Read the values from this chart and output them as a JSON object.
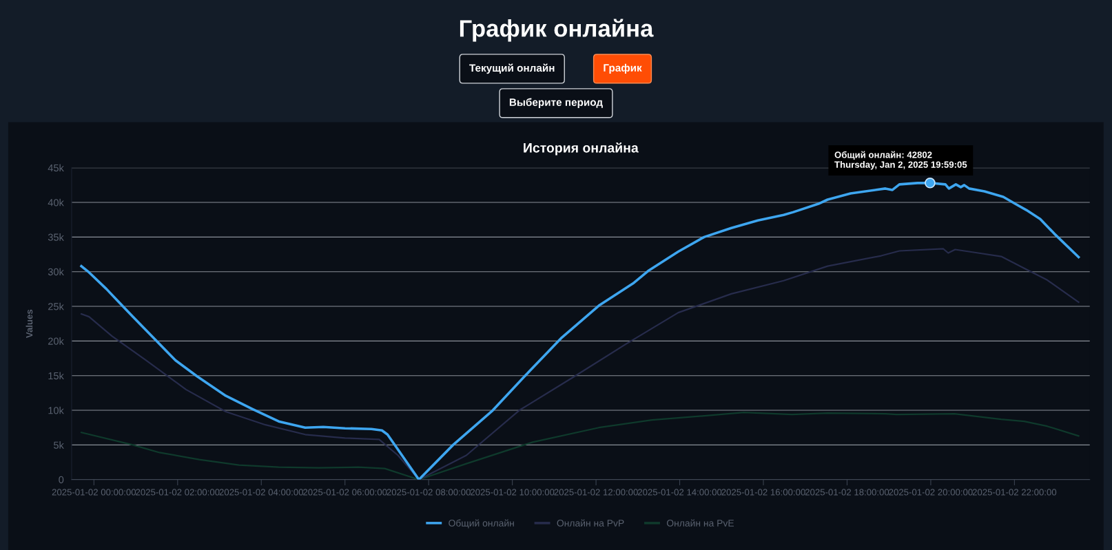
{
  "chart_data": {
    "type": "line",
    "title": "График онлайна",
    "subtitle": "История онлайна",
    "ylabel": "Values",
    "annotations": [
      "Текущий онлайн",
      "График",
      "Выберите период",
      {
        "text": "Общий онлайн: 42802\nThursday, Jan 2, 2025 19:59:05",
        "x": "2025-01-02T19:59",
        "y": 42802
      }
    ],
    "xlim": [
      "2025-01-01T23:28",
      "2025-01-02T23:48"
    ],
    "xticks": [
      {
        "value": "2025-01-02T00:00",
        "label": "2025-01-02 00:00:00"
      },
      {
        "value": "2025-01-02T02:00",
        "label": "2025-01-02 02:00:00"
      },
      {
        "value": "2025-01-02T04:00",
        "label": "2025-01-02 04:00:00"
      },
      {
        "value": "2025-01-02T06:00",
        "label": "2025-01-02 06:00:00"
      },
      {
        "value": "2025-01-02T08:00",
        "label": "2025-01-02 08:00:00"
      },
      {
        "value": "2025-01-02T10:00",
        "label": "2025-01-02 10:00:00"
      },
      {
        "value": "2025-01-02T12:00",
        "label": "2025-01-02 12:00:00"
      },
      {
        "value": "2025-01-02T14:00",
        "label": "2025-01-02 14:00:00"
      },
      {
        "value": "2025-01-02T16:00",
        "label": "2025-01-02 16:00:00"
      },
      {
        "value": "2025-01-02T18:00",
        "label": "2025-01-02 18:00:00"
      },
      {
        "value": "2025-01-02T20:00",
        "label": "2025-01-02 20:00:00"
      },
      {
        "value": "2025-01-02T22:00",
        "label": "2025-01-02 22:00:00"
      }
    ],
    "ylim": [
      0,
      45000
    ],
    "yticks": [
      0,
      {
        "value": 5000,
        "label": "5k"
      },
      {
        "value": 10000,
        "label": "10k"
      },
      {
        "value": 15000,
        "label": "15k"
      },
      {
        "value": 20000,
        "label": "20k"
      },
      {
        "value": 25000,
        "label": "25k"
      },
      {
        "value": 30000,
        "label": "30k"
      },
      {
        "value": 35000,
        "label": "35k"
      },
      {
        "value": 40000,
        "label": "40k"
      },
      {
        "value": 45000,
        "label": "45k"
      }
    ],
    "grid": "y",
    "legend": "bottom",
    "line_style": "solid",
    "series": [
      {
        "name": "Общий онлайн",
        "color": "#3ea6f0",
        "x": [
          "2025-01-01T23:42",
          "2025-01-01T23:53",
          "2025-01-02T00:18",
          "2025-01-02T00:34",
          "2025-01-02T00:56",
          "2025-01-02T01:23",
          "2025-01-02T01:57",
          "2025-01-02T02:28",
          "2025-01-02T03:09",
          "2025-01-02T03:47",
          "2025-01-02T04:25",
          "2025-01-02T05:03",
          "2025-01-02T05:29",
          "2025-01-02T06:00",
          "2025-01-02T06:38",
          "2025-01-02T06:53",
          "2025-01-02T07:01",
          "2025-01-02T07:46",
          "2025-01-02T08:35",
          "2025-01-02T09:32",
          "2025-01-02T10:25",
          "2025-01-02T11:11",
          "2025-01-02T12:04",
          "2025-01-02T12:53",
          "2025-01-02T13:16",
          "2025-01-02T13:58",
          "2025-01-02T14:35",
          "2025-01-02T15:14",
          "2025-01-02T15:52",
          "2025-01-02T16:29",
          "2025-01-02T16:43",
          "2025-01-02T17:19",
          "2025-01-02T17:32",
          "2025-01-02T18:05",
          "2025-01-02T18:55",
          "2025-01-02T19:05",
          "2025-01-02T19:15",
          "2025-01-02T19:41",
          "2025-01-02T19:59",
          "2025-01-02T20:21",
          "2025-01-02T20:26",
          "2025-01-02T20:36",
          "2025-01-02T20:43",
          "2025-01-02T20:48",
          "2025-01-02T20:55",
          "2025-01-02T21:17",
          "2025-01-02T21:44",
          "2025-01-02T22:01",
          "2025-01-02T22:17",
          "2025-01-02T22:37",
          "2025-01-02T22:57",
          "2025-01-02T23:32"
        ],
        "values": [
          30800,
          29900,
          27500,
          25800,
          23500,
          20700,
          17200,
          14900,
          12100,
          10200,
          8400,
          7500,
          7600,
          7400,
          7300,
          7100,
          6500,
          0,
          5000,
          10000,
          15700,
          20500,
          25100,
          28300,
          30200,
          32900,
          35000,
          36300,
          37400,
          38200,
          38600,
          39800,
          40400,
          41300,
          42000,
          41800,
          42600,
          42800,
          42802,
          42600,
          42000,
          42600,
          42200,
          42500,
          42000,
          41600,
          40800,
          39800,
          38900,
          37600,
          35500,
          32100
        ]
      },
      {
        "name": "Онлайн на PvP",
        "color": "#272c4c",
        "x": [
          "2025-01-01T23:42",
          "2025-01-01T23:53",
          "2025-01-02T00:26",
          "2025-01-02T01:15",
          "2025-01-02T02:12",
          "2025-01-02T03:09",
          "2025-01-02T04:06",
          "2025-01-02T05:03",
          "2025-01-02T06:00",
          "2025-01-02T06:49",
          "2025-01-02T07:16",
          "2025-01-02T07:46",
          "2025-01-02T08:54",
          "2025-01-02T10:10",
          "2025-01-02T11:26",
          "2025-01-02T12:42",
          "2025-01-02T13:58",
          "2025-01-02T15:14",
          "2025-01-02T16:29",
          "2025-01-02T17:32",
          "2025-01-02T18:49",
          "2025-01-02T19:15",
          "2025-01-02T20:18",
          "2025-01-02T20:25",
          "2025-01-02T20:35",
          "2025-01-02T21:08",
          "2025-01-02T21:41",
          "2025-01-02T22:14",
          "2025-01-02T22:47",
          "2025-01-02T23:32"
        ],
        "values": [
          23900,
          23500,
          20700,
          17200,
          13000,
          9800,
          7900,
          6500,
          6000,
          5800,
          3500,
          0,
          3500,
          10000,
          14700,
          19500,
          24100,
          26800,
          28700,
          30800,
          32300,
          33000,
          33300,
          32700,
          33200,
          32700,
          32200,
          30500,
          28800,
          25600
        ]
      },
      {
        "name": "Онлайн на PvE",
        "color": "#0f3a2c",
        "x": [
          "2025-01-01T23:42",
          "2025-01-02T00:56",
          "2025-01-02T01:34",
          "2025-01-02T02:31",
          "2025-01-02T03:28",
          "2025-01-02T04:25",
          "2025-01-02T05:22",
          "2025-01-02T06:19",
          "2025-01-02T06:57",
          "2025-01-02T07:46",
          "2025-01-02T08:54",
          "2025-01-02T10:29",
          "2025-01-02T12:04",
          "2025-01-02T13:20",
          "2025-01-02T14:35",
          "2025-01-02T15:32",
          "2025-01-02T16:41",
          "2025-01-02T17:32",
          "2025-01-02T18:55",
          "2025-01-02T19:11",
          "2025-01-02T20:34",
          "2025-01-02T21:41",
          "2025-01-02T22:14",
          "2025-01-02T22:47",
          "2025-01-02T23:32"
        ],
        "values": [
          6800,
          5000,
          3900,
          2900,
          2100,
          1800,
          1700,
          1800,
          1600,
          0,
          2300,
          5400,
          7500,
          8600,
          9200,
          9700,
          9400,
          9600,
          9500,
          9400,
          9500,
          8700,
          8400,
          7700,
          6300
        ]
      }
    ]
  }
}
